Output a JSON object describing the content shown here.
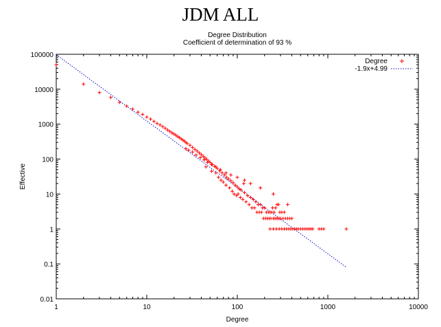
{
  "page_title": "JDM ALL",
  "chart_data": {
    "type": "scatter",
    "title": "Degree Distribution",
    "subtitle": "Coefficient of determination of 93 %",
    "xlabel": "Degree",
    "ylabel": "Effective",
    "xscale": "log",
    "yscale": "log",
    "xlim": [
      1,
      10000
    ],
    "ylim": [
      0.01,
      100000
    ],
    "xticks": [
      "1",
      "10",
      "100",
      "1000",
      "10000"
    ],
    "yticks": [
      "0.01",
      "0.1",
      "1",
      "10",
      "100",
      "1000",
      "10000",
      "100000"
    ],
    "legend": {
      "position": "top-right",
      "entries": [
        {
          "label": "Degree",
          "marker": "+",
          "color": "#ff0000"
        },
        {
          "label": "-1.9x+4.99",
          "style": "dotted",
          "color": "#0000cc"
        }
      ]
    },
    "fit": {
      "slope": -1.9,
      "intercept": 4.99,
      "x_range": [
        1,
        1600
      ]
    },
    "series": [
      {
        "name": "Degree",
        "color": "#ff0000",
        "points": [
          [
            1,
            50000
          ],
          [
            2,
            14000
          ],
          [
            3,
            8000
          ],
          [
            4,
            5800
          ],
          [
            5,
            4200
          ],
          [
            6,
            3300
          ],
          [
            7,
            2700
          ],
          [
            8,
            2200
          ],
          [
            9,
            1900
          ],
          [
            10,
            1600
          ],
          [
            11,
            1400
          ],
          [
            12,
            1200
          ],
          [
            13,
            1050
          ],
          [
            14,
            950
          ],
          [
            15,
            850
          ],
          [
            16,
            760
          ],
          [
            17,
            680
          ],
          [
            18,
            620
          ],
          [
            19,
            560
          ],
          [
            20,
            520
          ],
          [
            21,
            480
          ],
          [
            22,
            440
          ],
          [
            23,
            410
          ],
          [
            24,
            380
          ],
          [
            25,
            350
          ],
          [
            26,
            330
          ],
          [
            27,
            300
          ],
          [
            28,
            280
          ],
          [
            30,
            250
          ],
          [
            32,
            215
          ],
          [
            34,
            190
          ],
          [
            36,
            170
          ],
          [
            38,
            150
          ],
          [
            40,
            135
          ],
          [
            42,
            120
          ],
          [
            44,
            108
          ],
          [
            46,
            98
          ],
          [
            48,
            88
          ],
          [
            50,
            80
          ],
          [
            53,
            70
          ],
          [
            56,
            62
          ],
          [
            60,
            54
          ],
          [
            64,
            46
          ],
          [
            68,
            40
          ],
          [
            72,
            35
          ],
          [
            76,
            30
          ],
          [
            80,
            27
          ],
          [
            85,
            24
          ],
          [
            90,
            21
          ],
          [
            95,
            18
          ],
          [
            100,
            16
          ],
          [
            105,
            14
          ],
          [
            110,
            13
          ],
          [
            120,
            11
          ],
          [
            130,
            9
          ],
          [
            140,
            8
          ],
          [
            150,
            7
          ],
          [
            160,
            6
          ],
          [
            170,
            5
          ],
          [
            180,
            5
          ],
          [
            190,
            4
          ],
          [
            200,
            4
          ],
          [
            210,
            3
          ],
          [
            220,
            3
          ],
          [
            230,
            3
          ],
          [
            240,
            3
          ],
          [
            250,
            2
          ],
          [
            260,
            2
          ],
          [
            270,
            2
          ],
          [
            280,
            2
          ],
          [
            290,
            2
          ],
          [
            300,
            2
          ],
          [
            320,
            2
          ],
          [
            340,
            2
          ],
          [
            360,
            2
          ],
          [
            380,
            2
          ],
          [
            400,
            2
          ],
          [
            230,
            1
          ],
          [
            250,
            1
          ],
          [
            270,
            1
          ],
          [
            290,
            1
          ],
          [
            310,
            1
          ],
          [
            330,
            1
          ],
          [
            350,
            1
          ],
          [
            370,
            1
          ],
          [
            390,
            1
          ],
          [
            410,
            1
          ],
          [
            430,
            1
          ],
          [
            450,
            1
          ],
          [
            470,
            1
          ],
          [
            500,
            1
          ],
          [
            530,
            1
          ],
          [
            560,
            1
          ],
          [
            590,
            1
          ],
          [
            620,
            1
          ],
          [
            650,
            1
          ],
          [
            680,
            1
          ],
          [
            800,
            1
          ],
          [
            850,
            1
          ],
          [
            900,
            1
          ],
          [
            1600,
            1
          ],
          [
            45,
            60
          ],
          [
            52,
            45
          ],
          [
            58,
            40
          ],
          [
            62,
            30
          ],
          [
            66,
            25
          ],
          [
            70,
            22
          ],
          [
            75,
            18
          ],
          [
            82,
            15
          ],
          [
            88,
            12
          ],
          [
            92,
            10
          ],
          [
            98,
            9
          ],
          [
            102,
            10
          ],
          [
            108,
            8
          ],
          [
            115,
            7
          ],
          [
            118,
            20
          ],
          [
            125,
            6
          ],
          [
            135,
            5
          ],
          [
            145,
            4
          ],
          [
            155,
            4
          ],
          [
            165,
            3
          ],
          [
            175,
            3
          ],
          [
            185,
            3
          ],
          [
            195,
            2
          ],
          [
            205,
            2
          ],
          [
            215,
            2
          ],
          [
            225,
            2
          ],
          [
            235,
            2
          ],
          [
            245,
            4
          ],
          [
            255,
            3
          ],
          [
            265,
            4
          ],
          [
            275,
            5
          ],
          [
            285,
            5
          ],
          [
            295,
            3
          ],
          [
            310,
            3
          ],
          [
            330,
            3
          ],
          [
            360,
            5
          ],
          [
            250,
            10
          ],
          [
            180,
            15
          ],
          [
            140,
            20
          ],
          [
            120,
            25
          ],
          [
            100,
            30
          ],
          [
            85,
            35
          ],
          [
            75,
            40
          ],
          [
            65,
            50
          ],
          [
            58,
            60
          ],
          [
            52,
            70
          ],
          [
            47,
            80
          ],
          [
            43,
            95
          ],
          [
            39,
            110
          ],
          [
            35,
            130
          ],
          [
            32,
            160
          ],
          [
            29,
            180
          ],
          [
            27,
            200
          ]
        ]
      }
    ]
  }
}
